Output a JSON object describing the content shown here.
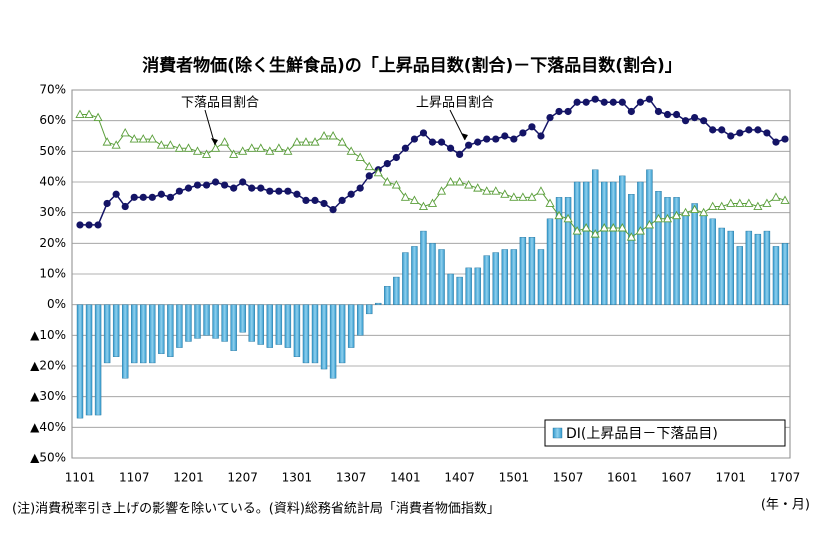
{
  "chart_data": {
    "type": "bar",
    "title": "消費者物価(除く生鮮食品)の「上昇品目数(割合)－下落品目数(割合)」",
    "categories": [
      "1101",
      null,
      null,
      null,
      null,
      null,
      "1107",
      null,
      null,
      null,
      null,
      null,
      "1201",
      null,
      null,
      null,
      null,
      null,
      "1207",
      null,
      null,
      null,
      null,
      null,
      "1301",
      null,
      null,
      null,
      null,
      null,
      "1307",
      null,
      null,
      null,
      null,
      null,
      "1401",
      null,
      null,
      null,
      null,
      null,
      "1407",
      null,
      null,
      null,
      null,
      null,
      "1501",
      null,
      null,
      null,
      null,
      null,
      "1507",
      null,
      null,
      null,
      null,
      null,
      "1601",
      null,
      null,
      null,
      null,
      null,
      "1607",
      null,
      null,
      null,
      null,
      null,
      "1701",
      null,
      null,
      null,
      null,
      null,
      "1707"
    ],
    "series": [
      {
        "name": "DI(上昇品目－下落品目)",
        "type": "bar",
        "color": "#3399cc",
        "values": [
          -37,
          -36,
          -36,
          -19,
          -17,
          -24,
          -19,
          -19,
          -19,
          -16,
          -17,
          -14,
          -12,
          -11,
          -10,
          -11,
          -12,
          -15,
          -9,
          -12,
          -13,
          -14,
          -13,
          -14,
          -17,
          -19,
          -19,
          -21,
          -24,
          -19,
          -14,
          -10,
          -3,
          0.5,
          6,
          9,
          17,
          19,
          24,
          20,
          18,
          10,
          9,
          12,
          12,
          16,
          17,
          18,
          18,
          22,
          22,
          18,
          28,
          35,
          35,
          40,
          40,
          44,
          40,
          40,
          42,
          36,
          40,
          44,
          37,
          35,
          35,
          30,
          33,
          29,
          28,
          25,
          24,
          19,
          24,
          23,
          24,
          19,
          20
        ]
      },
      {
        "name": "上昇品目割合",
        "type": "line",
        "marker": "circle",
        "color": "#141466",
        "values": [
          26,
          26,
          26,
          33,
          36,
          32,
          35,
          35,
          35,
          36,
          35,
          37,
          38,
          39,
          39,
          40,
          39,
          38,
          40,
          38,
          38,
          37,
          37,
          37,
          36,
          34,
          34,
          33,
          31,
          34,
          36,
          38,
          42,
          44,
          46,
          48,
          51,
          54,
          56,
          53,
          53,
          51,
          49,
          52,
          53,
          54,
          54,
          55,
          54,
          56,
          58,
          55,
          61,
          63,
          63,
          66,
          66,
          67,
          66,
          66,
          66,
          63,
          66,
          67,
          63,
          62,
          62,
          60,
          61,
          60,
          57,
          57,
          55,
          56,
          57,
          57,
          56,
          53,
          54
        ]
      },
      {
        "name": "下落品目割合",
        "type": "line",
        "marker": "triangle",
        "color": "#5a9e3a",
        "values": [
          62,
          62,
          61,
          53,
          52,
          56,
          54,
          54,
          54,
          52,
          52,
          51,
          51,
          50,
          49,
          51,
          53,
          49,
          50,
          51,
          51,
          50,
          51,
          50,
          53,
          53,
          53,
          55,
          55,
          53,
          50,
          48,
          45,
          43,
          40,
          39,
          35,
          34,
          32,
          33,
          37,
          40,
          40,
          39,
          38,
          37,
          37,
          36,
          35,
          35,
          35,
          37,
          33,
          29,
          28,
          24,
          25,
          23,
          25,
          25,
          25,
          22,
          24,
          26,
          28,
          28,
          29,
          30,
          31,
          30,
          32,
          32,
          33,
          33,
          33,
          32,
          33,
          35,
          34
        ]
      }
    ],
    "ylim": [
      -50,
      70
    ],
    "yticks": [
      {
        "value": -50,
        "label": "▲50%"
      },
      {
        "value": -40,
        "label": "▲40%"
      },
      {
        "value": -30,
        "label": "▲30%"
      },
      {
        "value": -20,
        "label": "▲20%"
      },
      {
        "value": -10,
        "label": "▲10%"
      },
      {
        "value": 0,
        "label": "0%"
      },
      {
        "value": 10,
        "label": "10%"
      },
      {
        "value": 20,
        "label": "20%"
      },
      {
        "value": 30,
        "label": "30%"
      },
      {
        "value": 40,
        "label": "40%"
      },
      {
        "value": 50,
        "label": "50%"
      },
      {
        "value": 60,
        "label": "60%"
      },
      {
        "value": 70,
        "label": "70%"
      }
    ],
    "grid": true,
    "legend": "lower right",
    "note": "(注)消費税率引き上げの影響を除いている。(資料)総務省統計局「消費者物価指数」",
    "xlabel": "(年・月)"
  }
}
